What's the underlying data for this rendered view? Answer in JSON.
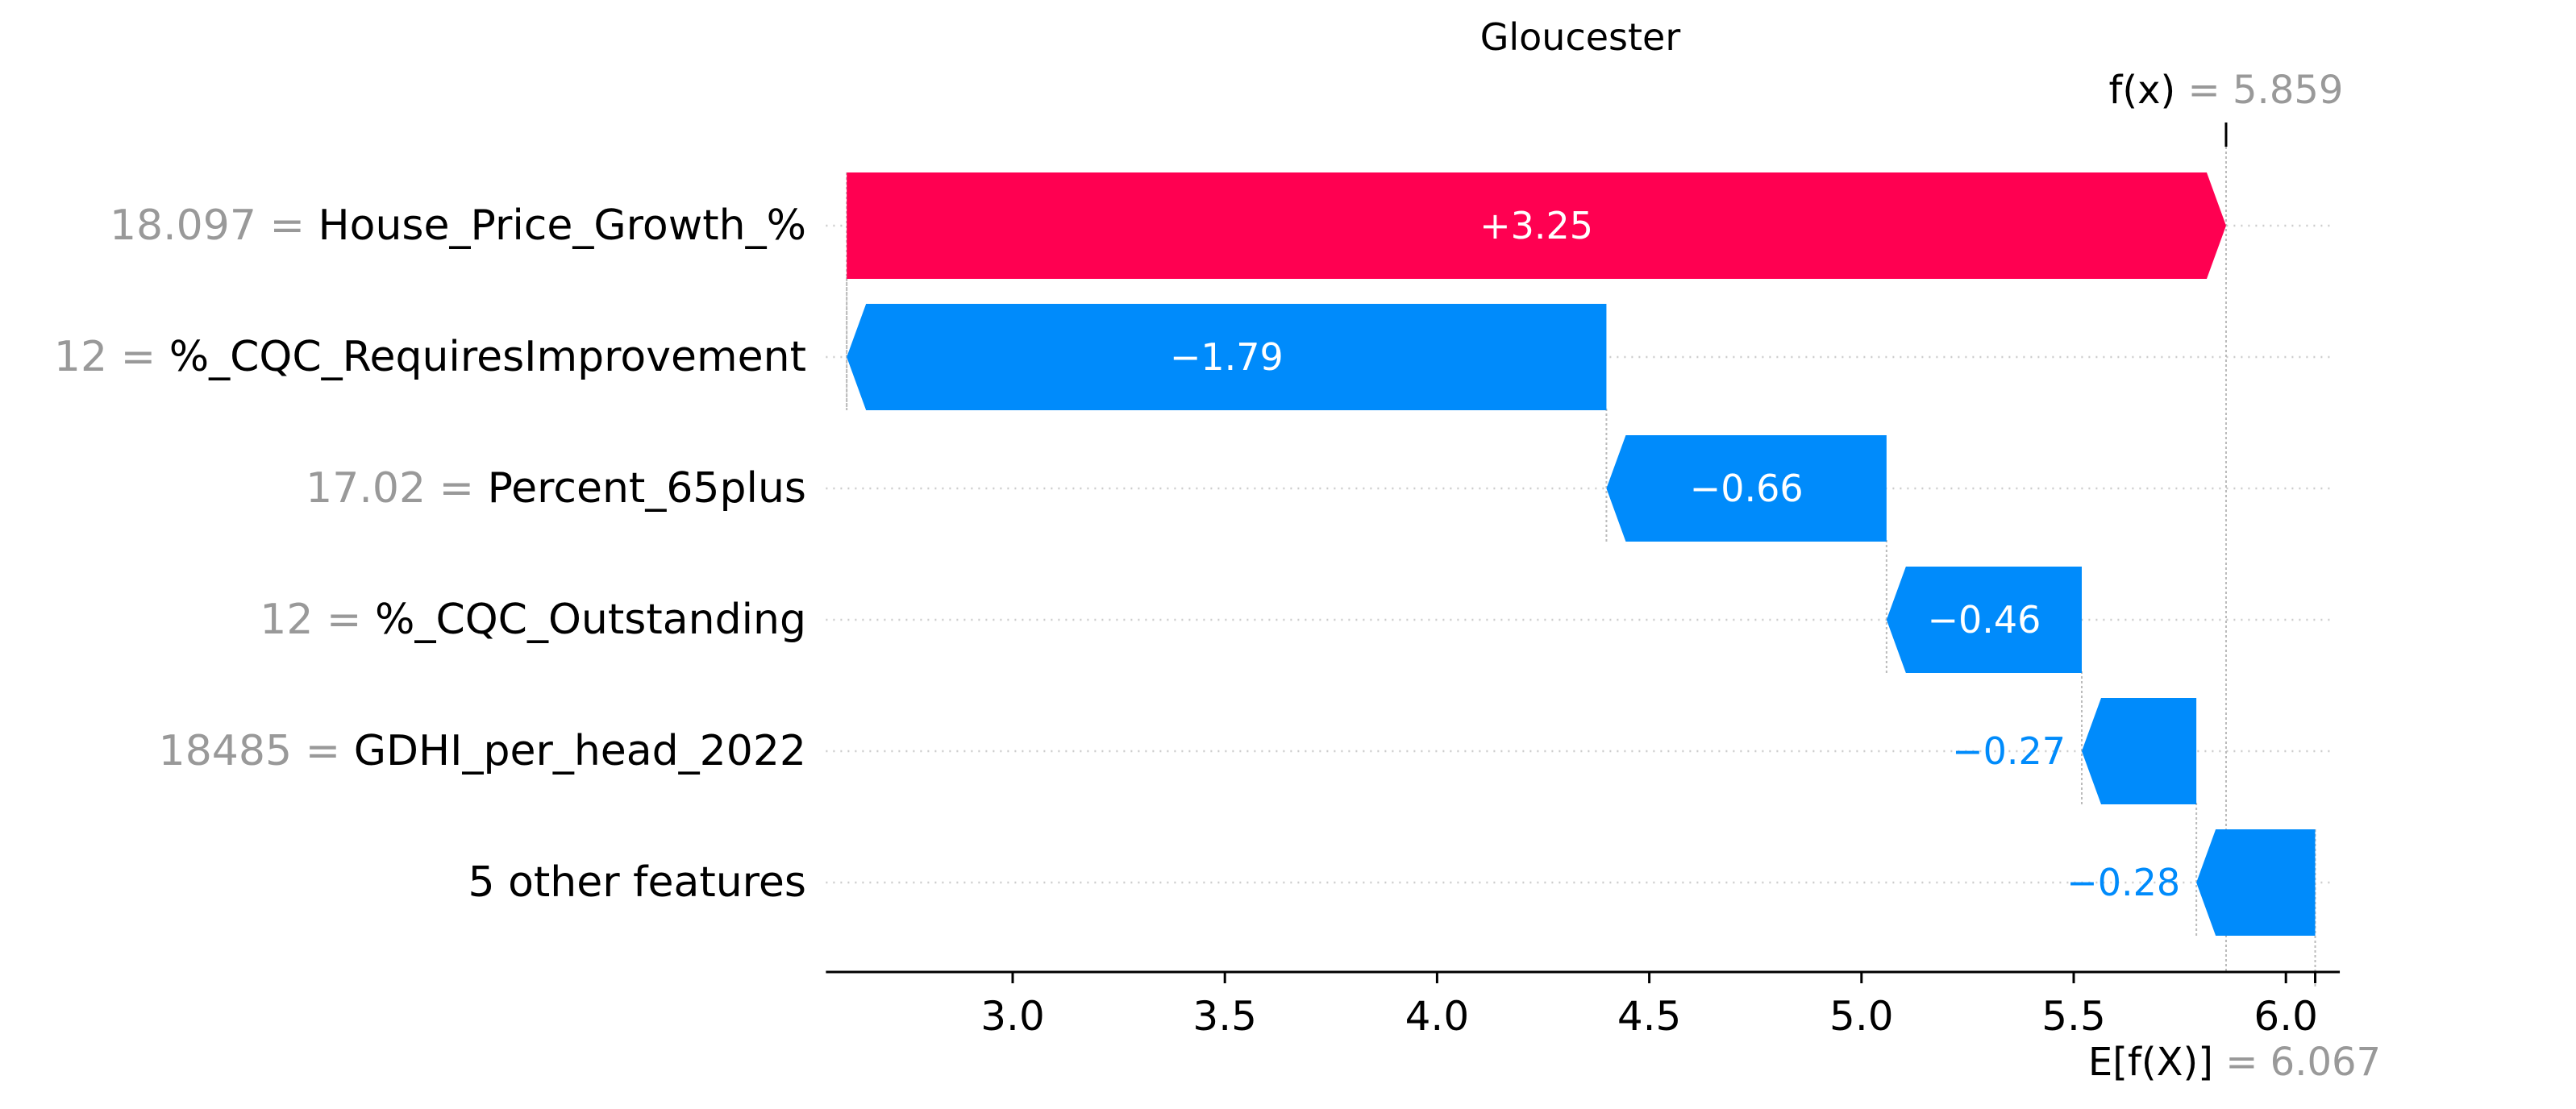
{
  "chart_data": {
    "type": "waterfall",
    "title": "Gloucester",
    "base_value": 6.067,
    "base_label_expr": "E[f(X)]",
    "base_label_value": "6.067",
    "output_value": 5.859,
    "output_label_expr": "f(x)",
    "output_label_value": "5.859",
    "xlim": [
      2.56,
      6.07
    ],
    "xticks": [
      3.0,
      3.5,
      4.0,
      4.5,
      5.0,
      5.5,
      6.0
    ],
    "xtick_labels": [
      "3.0",
      "3.5",
      "4.0",
      "4.5",
      "5.0",
      "5.5",
      "6.0"
    ],
    "features": [
      {
        "value": "18.097",
        "name": "House_Price_Growth_%",
        "shap": 3.25,
        "label": "+3.25"
      },
      {
        "value": "12",
        "name": "%_CQC_RequiresImprovement",
        "shap": -1.79,
        "label": "−1.79"
      },
      {
        "value": "17.02",
        "name": "Percent_65plus",
        "shap": -0.66,
        "label": "−0.66"
      },
      {
        "value": "12",
        "name": "%_CQC_Outstanding",
        "shap": -0.46,
        "label": "−0.46"
      },
      {
        "value": "18485",
        "name": "GDHI_per_head_2022",
        "shap": -0.27,
        "label": "−0.27"
      },
      {
        "value": "",
        "name": "5 other features",
        "shap": -0.28,
        "label": "−0.28"
      }
    ],
    "colors": {
      "positive": "#ff0051",
      "negative": "#008bfb",
      "muted": "#999999"
    }
  }
}
